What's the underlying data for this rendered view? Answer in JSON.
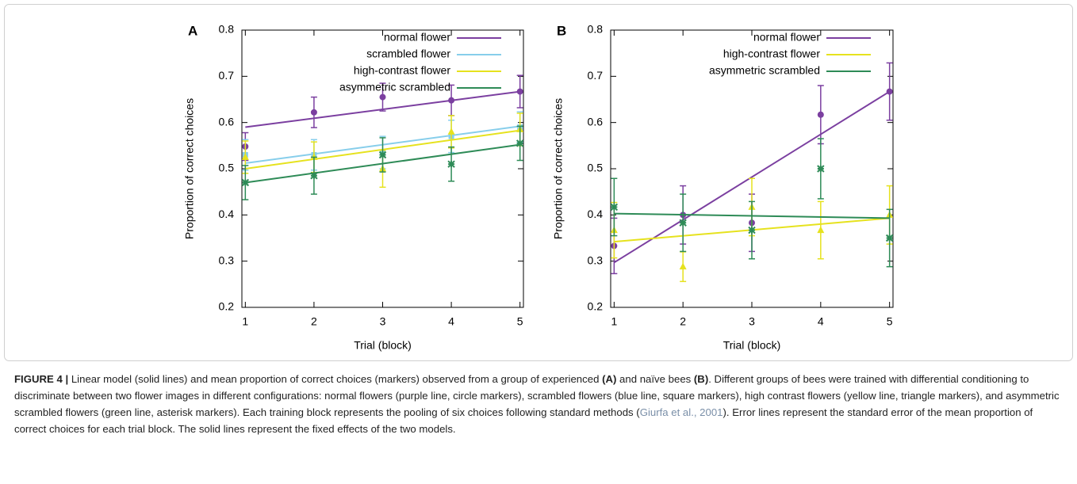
{
  "chart_data": [
    {
      "type": "line",
      "panel": "A",
      "xlabel": "Trial (block)",
      "ylabel": "Proportion of correct choices",
      "x": [
        1,
        2,
        3,
        4,
        5
      ],
      "xlim": [
        0.95,
        5.05
      ],
      "xticks": [
        1,
        2,
        3,
        4,
        5
      ],
      "ylim": [
        0.2,
        0.8
      ],
      "yticks": [
        0.2,
        0.3,
        0.4,
        0.5,
        0.6,
        0.7,
        0.8
      ],
      "legend": "top-right",
      "series": [
        {
          "name": "normal flower",
          "color": "#7b3fa0",
          "marker": "circle",
          "values": [
            0.548,
            0.622,
            0.655,
            0.648,
            0.667
          ],
          "errors": [
            0.03,
            0.033,
            0.03,
            0.033,
            0.035
          ],
          "fit": [
            0.59,
            0.667
          ]
        },
        {
          "name": "scrambled flower",
          "color": "#87ceeb",
          "marker": "square",
          "values": [
            0.53,
            0.53,
            0.535,
            0.57,
            0.59
          ],
          "errors": [
            0.033,
            0.033,
            0.035,
            0.035,
            0.033
          ],
          "fit": [
            0.512,
            0.592
          ]
        },
        {
          "name": "high-contrast flower",
          "color": "#e6e21e",
          "marker": "triangle",
          "values": [
            0.525,
            0.525,
            0.5,
            0.58,
            0.585
          ],
          "errors": [
            0.035,
            0.033,
            0.04,
            0.035,
            0.035
          ],
          "fit": [
            0.5,
            0.583
          ]
        },
        {
          "name": "asymmetric scrambled",
          "color": "#2e8b57",
          "marker": "asterisk",
          "values": [
            0.47,
            0.485,
            0.53,
            0.51,
            0.555
          ],
          "errors": [
            0.037,
            0.04,
            0.037,
            0.037,
            0.037
          ],
          "fit": [
            0.47,
            0.552
          ]
        }
      ]
    },
    {
      "type": "line",
      "panel": "B",
      "xlabel": "Trial (block)",
      "ylabel": "Proportion of correct choices",
      "x": [
        1,
        2,
        3,
        4,
        5
      ],
      "xlim": [
        0.95,
        5.05
      ],
      "xticks": [
        1,
        2,
        3,
        4,
        5
      ],
      "ylim": [
        0.2,
        0.8
      ],
      "yticks": [
        0.2,
        0.3,
        0.4,
        0.5,
        0.6,
        0.7,
        0.8
      ],
      "legend": "top-right",
      "series": [
        {
          "name": "normal flower",
          "color": "#7b3fa0",
          "marker": "circle",
          "values": [
            0.333,
            0.4,
            0.383,
            0.617,
            0.667
          ],
          "errors": [
            0.06,
            0.063,
            0.062,
            0.063,
            0.062
          ],
          "fit": [
            0.297,
            0.667
          ]
        },
        {
          "name": "high-contrast flower",
          "color": "#e6e21e",
          "marker": "triangle",
          "values": [
            0.367,
            0.288,
            0.417,
            0.367,
            0.4
          ],
          "errors": [
            0.06,
            0.032,
            0.062,
            0.062,
            0.063
          ],
          "fit": [
            0.342,
            0.393
          ]
        },
        {
          "name": "asymmetric scrambled",
          "color": "#2e8b57",
          "marker": "asterisk",
          "values": [
            0.417,
            0.383,
            0.367,
            0.5,
            0.35
          ],
          "errors": [
            0.062,
            0.062,
            0.062,
            0.065,
            0.062
          ],
          "fit": [
            0.403,
            0.393
          ]
        }
      ]
    }
  ],
  "caption": {
    "parts": [
      "FIGURE 4 |",
      " Linear model (solid lines) and mean proportion of correct choices (markers) observed from a group of experienced ",
      "(A)",
      " and naïve bees ",
      "(B)",
      ". Different groups of bees were trained with differential conditioning to discriminate between two flower images in different configurations: normal flowers (purple line, circle markers), scrambled flowers (blue line, square markers), high contrast flowers (yellow line, triangle markers), and asymmetric scrambled flowers (green line, asterisk markers). Each training block represents the pooling of six choices following standard methods (",
      "Giurfa et al., 2001",
      "). Error lines represent the standard error of the mean proportion of correct choices for each trial block. The solid lines represent the fixed effects of the two models."
    ]
  }
}
